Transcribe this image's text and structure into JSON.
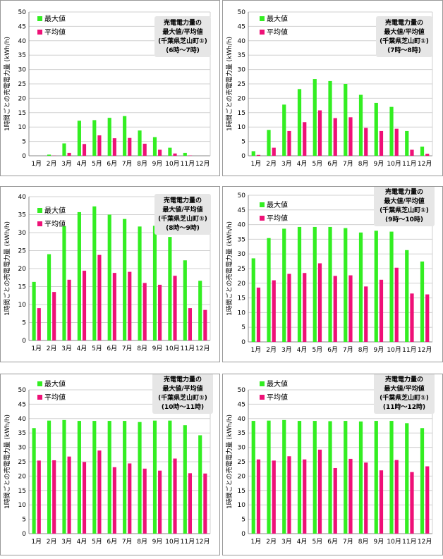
{
  "colors": {
    "max": "#33ee22",
    "avg": "#ee1177",
    "grid": "#d0d0d0",
    "axis": "#888888",
    "titlebox": "#e6e6e6"
  },
  "months": [
    "1月",
    "2月",
    "3月",
    "4月",
    "5月",
    "6月",
    "7月",
    "8月",
    "9月",
    "10月",
    "11月",
    "12月"
  ],
  "legend": {
    "max": "最大値",
    "avg": "平均値"
  },
  "ylabel": "1時間ごとの売電電力量 (kWh/h)",
  "chart_data": [
    {
      "type": "bar",
      "title": [
        "売電電力量の",
        "最大値/平均値",
        "(千葉県芝山町①)",
        "(6時〜7時)"
      ],
      "ylim": [
        0,
        50
      ],
      "yticks": [
        0,
        5,
        10,
        15,
        20,
        25,
        30,
        35,
        40,
        45,
        50
      ],
      "categories": [
        "1月",
        "2月",
        "3月",
        "4月",
        "5月",
        "6月",
        "7月",
        "8月",
        "9月",
        "10月",
        "11月",
        "12月"
      ],
      "series": [
        {
          "name": "最大値",
          "values": [
            0,
            0.4,
            4.3,
            12.2,
            12.4,
            13.2,
            13.8,
            8.8,
            6.5,
            2.8,
            1.0,
            0
          ]
        },
        {
          "name": "平均値",
          "values": [
            0,
            0.05,
            1.0,
            4.1,
            7.1,
            6.1,
            6.2,
            4.2,
            2.1,
            0.8,
            0.1,
            0
          ]
        }
      ]
    },
    {
      "type": "bar",
      "title": [
        "売電電力量の",
        "最大値/平均値",
        "(千葉県芝山町①)",
        "(7時〜8時)"
      ],
      "ylim": [
        0,
        50
      ],
      "yticks": [
        0,
        5,
        10,
        15,
        20,
        25,
        30,
        35,
        40,
        45,
        50
      ],
      "categories": [
        "1月",
        "2月",
        "3月",
        "4月",
        "5月",
        "6月",
        "7月",
        "8月",
        "9月",
        "10月",
        "11月",
        "12月"
      ],
      "series": [
        {
          "name": "最大値",
          "values": [
            1.6,
            9.0,
            17.8,
            23.2,
            26.7,
            26.0,
            25.0,
            21.2,
            18.4,
            17.0,
            8.6,
            3.2
          ]
        },
        {
          "name": "平均値",
          "values": [
            0.3,
            2.8,
            8.6,
            11.7,
            15.8,
            13.1,
            13.4,
            9.7,
            8.6,
            9.4,
            2.1,
            0.7
          ]
        }
      ]
    },
    {
      "type": "bar",
      "title": [
        "売電電力量の",
        "最大値/平均値",
        "(千葉県芝山町①)",
        "(8時〜9時)"
      ],
      "ylim": [
        0,
        40
      ],
      "yticks": [
        0,
        5,
        10,
        15,
        20,
        25,
        30,
        35,
        40
      ],
      "categories": [
        "1月",
        "2月",
        "3月",
        "4月",
        "5月",
        "6月",
        "7月",
        "8月",
        "9月",
        "10月",
        "11月",
        "12月"
      ],
      "series": [
        {
          "name": "最大値",
          "values": [
            16.3,
            24.0,
            31.8,
            35.7,
            37.3,
            35.0,
            33.8,
            31.7,
            31.9,
            28.8,
            22.3,
            16.6
          ]
        },
        {
          "name": "平均値",
          "values": [
            9.0,
            13.5,
            16.9,
            19.4,
            23.8,
            18.8,
            19.1,
            16.0,
            15.5,
            18.0,
            9.0,
            8.5
          ]
        }
      ]
    },
    {
      "type": "bar",
      "title": [
        "売電電力量の",
        "最大値/平均値",
        "(千葉県芝山町①)",
        "(9時〜10時)"
      ],
      "ylim": [
        0,
        50
      ],
      "yticks": [
        0,
        5,
        10,
        15,
        20,
        25,
        30,
        35,
        40,
        45,
        50
      ],
      "categories": [
        "1月",
        "2月",
        "3月",
        "4月",
        "5月",
        "6月",
        "7月",
        "8月",
        "9月",
        "10月",
        "11月",
        "12月"
      ],
      "series": [
        {
          "name": "最大値",
          "values": [
            28.5,
            35.4,
            38.6,
            39.2,
            39.2,
            39.2,
            38.8,
            37.3,
            37.9,
            37.6,
            31.3,
            27.4
          ]
        },
        {
          "name": "平均値",
          "values": [
            18.5,
            21.0,
            23.2,
            23.5,
            26.8,
            22.5,
            22.7,
            18.9,
            21.2,
            25.3,
            16.5,
            16.2
          ]
        }
      ]
    },
    {
      "type": "bar",
      "title": [
        "売電電力量の",
        "最大値/平均値",
        "(千葉県芝山町①)",
        "(10時〜11時)"
      ],
      "ylim": [
        0,
        50
      ],
      "yticks": [
        0,
        5,
        10,
        15,
        20,
        25,
        30,
        35,
        40,
        45,
        50
      ],
      "categories": [
        "1月",
        "2月",
        "3月",
        "4月",
        "5月",
        "6月",
        "7月",
        "8月",
        "9月",
        "10月",
        "11月",
        "12月"
      ],
      "series": [
        {
          "name": "最大値",
          "values": [
            36.7,
            39.3,
            39.5,
            39.2,
            39.2,
            39.2,
            39.2,
            38.8,
            39.3,
            39.3,
            37.7,
            34.2
          ]
        },
        {
          "name": "平均値",
          "values": [
            25.4,
            25.5,
            26.8,
            24.9,
            28.9,
            23.1,
            24.4,
            22.6,
            21.9,
            26.1,
            21.0,
            20.9
          ]
        }
      ]
    },
    {
      "type": "bar",
      "title": [
        "売電電力量の",
        "最大値/平均値",
        "(千葉県芝山町①)",
        "(11時〜12時)"
      ],
      "ylim": [
        0,
        50
      ],
      "yticks": [
        0,
        5,
        10,
        15,
        20,
        25,
        30,
        35,
        40,
        45,
        50
      ],
      "categories": [
        "1月",
        "2月",
        "3月",
        "4月",
        "5月",
        "6月",
        "7月",
        "8月",
        "9月",
        "10月",
        "11月",
        "12月"
      ],
      "series": [
        {
          "name": "最大値",
          "values": [
            39.2,
            39.3,
            39.5,
            39.2,
            39.2,
            39.1,
            39.2,
            39.0,
            39.2,
            39.2,
            38.4,
            36.7
          ]
        },
        {
          "name": "平均値",
          "values": [
            25.8,
            25.4,
            26.9,
            25.8,
            29.2,
            22.8,
            26.0,
            24.7,
            22.0,
            25.6,
            21.4,
            23.4
          ]
        }
      ]
    }
  ]
}
